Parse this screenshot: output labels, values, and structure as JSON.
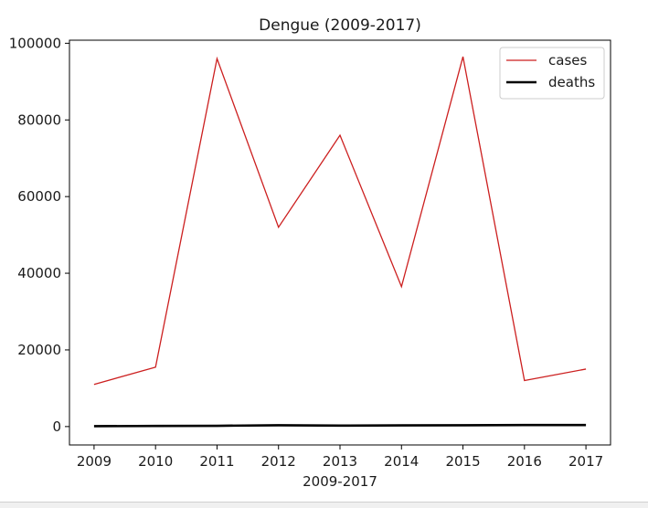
{
  "chart_data": {
    "type": "line",
    "title": "Dengue (2009-2017)",
    "xlabel": "2009-2017",
    "ylabel": "",
    "x": [
      2009,
      2010,
      2011,
      2012,
      2013,
      2014,
      2015,
      2016,
      2017
    ],
    "xticks": [
      "2009",
      "2010",
      "2011",
      "2012",
      "2013",
      "2014",
      "2015",
      "2016",
      "2017"
    ],
    "yticks": [
      0,
      20000,
      40000,
      60000,
      80000,
      100000
    ],
    "ytick_labels": [
      "0",
      "20000",
      "40000",
      "60000",
      "80000",
      "100000"
    ],
    "xlim": [
      2008.6,
      2017.4
    ],
    "ylim": [
      -4800,
      100800
    ],
    "grid": false,
    "legend_position": "top-right",
    "series": [
      {
        "name": "cases",
        "color": "#cc1f1f",
        "values": [
          11000,
          15500,
          96000,
          52000,
          76000,
          36500,
          96500,
          12000,
          15000
        ]
      },
      {
        "name": "deaths",
        "color": "#000000",
        "values": [
          100,
          150,
          200,
          350,
          250,
          300,
          350,
          400,
          400
        ]
      }
    ]
  }
}
